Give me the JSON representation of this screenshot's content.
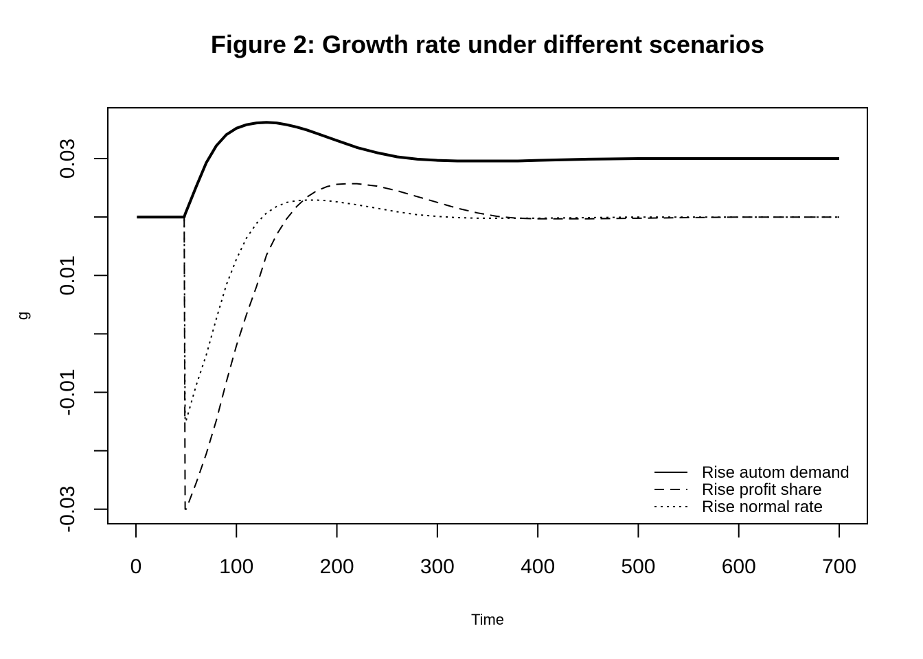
{
  "chart_data": {
    "type": "line",
    "title": "Figure 2: Growth rate under different scenarios",
    "xlabel": "Time",
    "ylabel": "g",
    "xlim": [
      -28,
      728
    ],
    "ylim": [
      -0.0325,
      0.0387
    ],
    "x_ticks": [
      0,
      100,
      200,
      300,
      400,
      500,
      600,
      700
    ],
    "y_ticks": [
      -0.03,
      -0.02,
      -0.01,
      0.0,
      0.01,
      0.02,
      0.03
    ],
    "y_tick_labels": [
      {
        "value": -0.03,
        "label": "-0.03"
      },
      {
        "value": -0.01,
        "label": "-0.01"
      },
      {
        "value": 0.01,
        "label": "0.01"
      },
      {
        "value": 0.03,
        "label": "0.03"
      }
    ],
    "legend_position": "bottom-right",
    "grid": false,
    "series": [
      {
        "name": "Rise autom demand",
        "style": "solid",
        "color": "#000000",
        "x": [
          1,
          48,
          49,
          60,
          70,
          80,
          90,
          100,
          110,
          120,
          130,
          140,
          150,
          160,
          170,
          180,
          200,
          220,
          240,
          260,
          280,
          300,
          320,
          340,
          360,
          380,
          400,
          450,
          500,
          550,
          600,
          650,
          700
        ],
        "y": [
          0.02,
          0.02,
          0.0205,
          0.0252,
          0.0293,
          0.0322,
          0.0341,
          0.0352,
          0.0358,
          0.0361,
          0.0362,
          0.0361,
          0.0358,
          0.0354,
          0.0349,
          0.0343,
          0.0331,
          0.0319,
          0.031,
          0.0303,
          0.0299,
          0.0297,
          0.0296,
          0.0296,
          0.0296,
          0.0296,
          0.0297,
          0.0299,
          0.03,
          0.03,
          0.03,
          0.03,
          0.03
        ]
      },
      {
        "name": "Rise profit share",
        "style": "dashed",
        "color": "#000000",
        "x": [
          1,
          48,
          49,
          50,
          60,
          70,
          80,
          90,
          100,
          110,
          120,
          130,
          140,
          150,
          160,
          170,
          180,
          190,
          200,
          210,
          220,
          240,
          260,
          280,
          300,
          320,
          340,
          360,
          380,
          400,
          450,
          500,
          550,
          600,
          650,
          700
        ],
        "y": [
          0.02,
          0.02,
          -0.03,
          -0.03,
          -0.0255,
          -0.0205,
          -0.0148,
          -0.0082,
          -0.002,
          0.0033,
          0.0081,
          0.0135,
          0.017,
          0.0197,
          0.0218,
          0.0234,
          0.0245,
          0.0252,
          0.0256,
          0.0257,
          0.0257,
          0.0253,
          0.0245,
          0.0235,
          0.0225,
          0.0215,
          0.0207,
          0.0201,
          0.0198,
          0.0197,
          0.0197,
          0.0198,
          0.0199,
          0.02,
          0.02,
          0.02
        ]
      },
      {
        "name": "Rise normal rate",
        "style": "dotted",
        "color": "#000000",
        "x": [
          1,
          48,
          49,
          50,
          60,
          70,
          80,
          90,
          100,
          110,
          120,
          130,
          140,
          150,
          160,
          170,
          180,
          190,
          200,
          220,
          240,
          260,
          280,
          300,
          320,
          340,
          360,
          380,
          400,
          450,
          500,
          550,
          600,
          650,
          700
        ],
        "y": [
          0.02,
          0.02,
          -0.015,
          -0.0148,
          -0.0088,
          -0.0036,
          0.0026,
          0.0084,
          0.0128,
          0.0164,
          0.0189,
          0.0207,
          0.0218,
          0.0225,
          0.0228,
          0.0229,
          0.0229,
          0.0228,
          0.0226,
          0.0221,
          0.0215,
          0.0209,
          0.0204,
          0.0201,
          0.0199,
          0.0198,
          0.0198,
          0.0198,
          0.0198,
          0.0199,
          0.02,
          0.02,
          0.02,
          0.02,
          0.02
        ]
      }
    ]
  }
}
